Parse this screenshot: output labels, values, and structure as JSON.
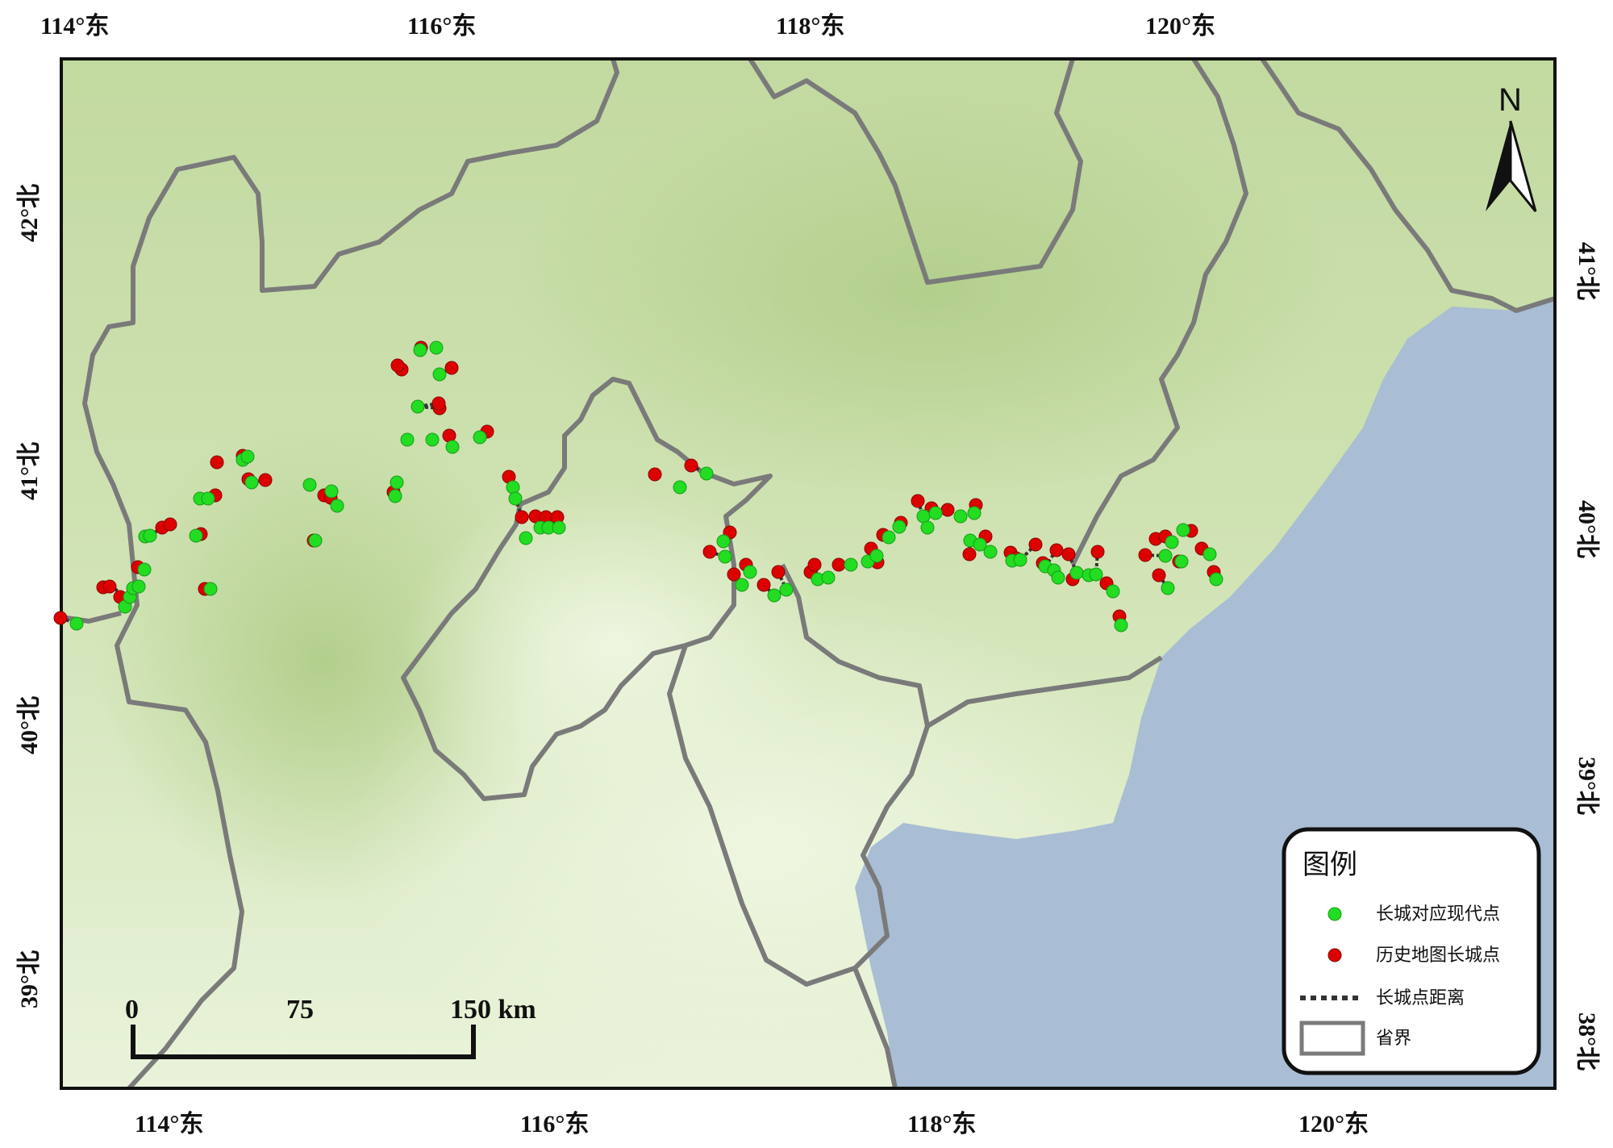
{
  "map": {
    "ticks_top": [
      "114°东",
      "116°东",
      "118°东",
      "120°东"
    ],
    "ticks_bottom": [
      "114°东",
      "116°东",
      "118°东",
      "120°东"
    ],
    "ticks_left": [
      "42°北",
      "41°北",
      "40°北",
      "39°北"
    ],
    "ticks_right": [
      "41°北",
      "40°北",
      "39°北",
      "38°北"
    ],
    "north_label": "N",
    "colors": {
      "modern_point": "#22dd22",
      "historic_point": "#dd0000",
      "boundary": "#7a7a7a",
      "sea": "#a9bdd4",
      "land_low": "#e6f2d2",
      "land_high": "#bcd59b"
    }
  },
  "scale_bar": {
    "labels": [
      "0",
      "75",
      "150 km"
    ]
  },
  "legend": {
    "title": "图例",
    "items": [
      {
        "label": "长城对应现代点",
        "symbol": "green-dot"
      },
      {
        "label": "历史地图长城点",
        "symbol": "red-dot"
      },
      {
        "label": "长城点距离",
        "symbol": "dotted-line"
      },
      {
        "label": "省界",
        "symbol": "rectangle"
      }
    ]
  },
  "points": {
    "modern": [
      [
        95,
        773
      ],
      [
        155,
        752
      ],
      [
        161,
        740
      ],
      [
        165,
        729
      ],
      [
        172,
        727
      ],
      [
        179,
        706
      ],
      [
        180,
        665
      ],
      [
        186,
        664
      ],
      [
        243,
        664
      ],
      [
        248,
        618
      ],
      [
        258,
        618
      ],
      [
        261,
        730
      ],
      [
        301,
        570
      ],
      [
        307,
        566
      ],
      [
        312,
        598
      ],
      [
        384,
        601
      ],
      [
        391,
        670
      ],
      [
        411,
        609
      ],
      [
        418,
        627
      ],
      [
        490,
        615
      ],
      [
        492,
        598
      ],
      [
        505,
        545
      ],
      [
        518,
        504
      ],
      [
        521,
        434
      ],
      [
        536,
        545
      ],
      [
        541,
        431
      ],
      [
        545,
        464
      ],
      [
        561,
        554
      ],
      [
        595,
        542
      ],
      [
        636,
        604
      ],
      [
        639,
        618
      ],
      [
        652,
        667
      ],
      [
        670,
        654
      ],
      [
        680,
        654
      ],
      [
        693,
        654
      ],
      [
        843,
        604
      ],
      [
        876,
        587
      ],
      [
        897,
        671
      ],
      [
        899,
        690
      ],
      [
        920,
        725
      ],
      [
        930,
        709
      ],
      [
        960,
        738
      ],
      [
        975,
        731
      ],
      [
        1014,
        718
      ],
      [
        1027,
        716
      ],
      [
        1055,
        700
      ],
      [
        1076,
        696
      ],
      [
        1087,
        689
      ],
      [
        1102,
        666
      ],
      [
        1115,
        653
      ],
      [
        1145,
        640
      ],
      [
        1150,
        654
      ],
      [
        1160,
        636
      ],
      [
        1191,
        640
      ],
      [
        1203,
        670
      ],
      [
        1208,
        636
      ],
      [
        1215,
        675
      ],
      [
        1228,
        684
      ],
      [
        1255,
        695
      ],
      [
        1265,
        694
      ],
      [
        1296,
        702
      ],
      [
        1307,
        707
      ],
      [
        1312,
        716
      ],
      [
        1335,
        710
      ],
      [
        1350,
        713
      ],
      [
        1359,
        712
      ],
      [
        1380,
        733
      ],
      [
        1390,
        775
      ],
      [
        1445,
        689
      ],
      [
        1448,
        729
      ],
      [
        1453,
        672
      ],
      [
        1465,
        696
      ],
      [
        1467,
        657
      ],
      [
        1500,
        687
      ],
      [
        1508,
        718
      ]
    ],
    "historic": [
      [
        75,
        766
      ],
      [
        128,
        728
      ],
      [
        136,
        727
      ],
      [
        149,
        740
      ],
      [
        171,
        703
      ],
      [
        201,
        654
      ],
      [
        211,
        650
      ],
      [
        249,
        662
      ],
      [
        254,
        730
      ],
      [
        267,
        614
      ],
      [
        269,
        573
      ],
      [
        301,
        565
      ],
      [
        308,
        594
      ],
      [
        329,
        595
      ],
      [
        389,
        670
      ],
      [
        402,
        614
      ],
      [
        410,
        617
      ],
      [
        488,
        610
      ],
      [
        498,
        458
      ],
      [
        493,
        453
      ],
      [
        522,
        431
      ],
      [
        545,
        506
      ],
      [
        544,
        500
      ],
      [
        560,
        456
      ],
      [
        557,
        540
      ],
      [
        604,
        535
      ],
      [
        631,
        591
      ],
      [
        647,
        641
      ],
      [
        664,
        640
      ],
      [
        677,
        641
      ],
      [
        691,
        641
      ],
      [
        812,
        588
      ],
      [
        857,
        577
      ],
      [
        880,
        684
      ],
      [
        905,
        660
      ],
      [
        910,
        712
      ],
      [
        925,
        700
      ],
      [
        947,
        725
      ],
      [
        965,
        709
      ],
      [
        1005,
        709
      ],
      [
        1010,
        700
      ],
      [
        1040,
        700
      ],
      [
        1080,
        680
      ],
      [
        1088,
        697
      ],
      [
        1095,
        663
      ],
      [
        1117,
        648
      ],
      [
        1138,
        621
      ],
      [
        1155,
        630
      ],
      [
        1175,
        632
      ],
      [
        1210,
        626
      ],
      [
        1202,
        687
      ],
      [
        1222,
        665
      ],
      [
        1253,
        685
      ],
      [
        1260,
        692
      ],
      [
        1284,
        675
      ],
      [
        1293,
        698
      ],
      [
        1310,
        682
      ],
      [
        1325,
        687
      ],
      [
        1330,
        718
      ],
      [
        1361,
        684
      ],
      [
        1372,
        723
      ],
      [
        1388,
        764
      ],
      [
        1420,
        688
      ],
      [
        1433,
        668
      ],
      [
        1437,
        713
      ],
      [
        1445,
        665
      ],
      [
        1462,
        696
      ],
      [
        1477,
        658
      ],
      [
        1490,
        680
      ],
      [
        1505,
        709
      ]
    ]
  }
}
